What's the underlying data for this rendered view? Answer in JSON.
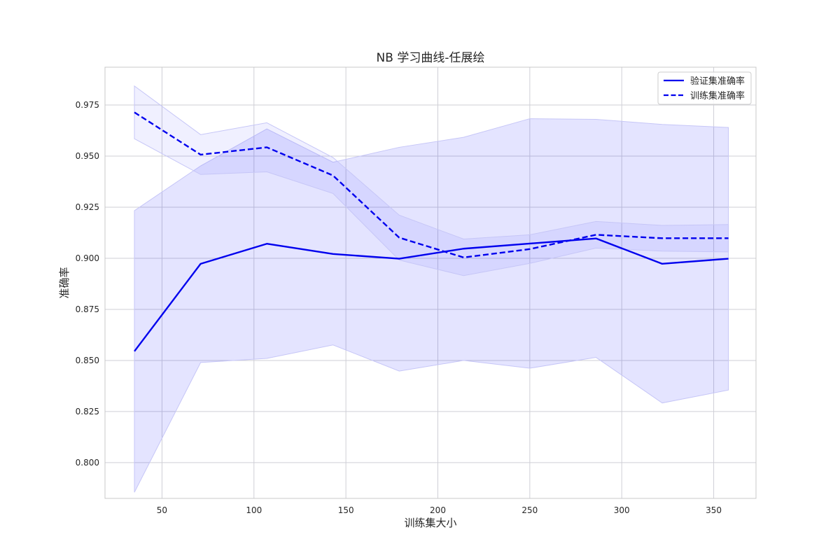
{
  "chart_data": {
    "type": "line",
    "title": "NB 学习曲线-任展绘",
    "xlabel": "训练集大小",
    "ylabel": "准确率",
    "xlim": [
      19,
      373
    ],
    "ylim": [
      0.7825,
      0.9935
    ],
    "xticks": [
      50,
      100,
      150,
      200,
      250,
      300,
      350
    ],
    "yticks": [
      0.8,
      0.825,
      0.85,
      0.875,
      0.9,
      0.925,
      0.95,
      0.975
    ],
    "grid": true,
    "legend_position": "top-right",
    "colors": {
      "line": "#0000ee",
      "band": "#e3e3fc",
      "band_stroke": "#c6c6f7",
      "grid": "#cfcfd6",
      "axes_edge": "#c8c8c8"
    },
    "x": [
      35,
      71,
      107,
      143,
      179,
      214,
      250,
      286,
      322,
      358
    ],
    "series": [
      {
        "name": "验证集准确率",
        "style": "solid",
        "values": [
          0.8545,
          0.8973,
          0.9071,
          0.9021,
          0.8998,
          0.9047,
          0.9072,
          0.9097,
          0.8973,
          0.8998
        ],
        "band_upper": [
          0.9233,
          0.9452,
          0.9633,
          0.947,
          0.9543,
          0.9592,
          0.9683,
          0.968,
          0.9655,
          0.964
        ],
        "band_lower": [
          0.7855,
          0.849,
          0.851,
          0.8576,
          0.8448,
          0.85,
          0.8462,
          0.8515,
          0.8292,
          0.8355
        ]
      },
      {
        "name": "训练集准确率",
        "style": "dashed",
        "values": [
          0.9714,
          0.9507,
          0.9543,
          0.9405,
          0.9101,
          0.9004,
          0.9045,
          0.9115,
          0.9098,
          0.9098
        ],
        "band_upper": [
          0.9843,
          0.9605,
          0.9663,
          0.9493,
          0.9211,
          0.9094,
          0.9115,
          0.918,
          0.9161,
          0.9165
        ],
        "band_lower": [
          0.9585,
          0.941,
          0.9423,
          0.9317,
          0.8991,
          0.8915,
          0.8975,
          0.905,
          0.9035,
          0.9031
        ]
      }
    ]
  }
}
